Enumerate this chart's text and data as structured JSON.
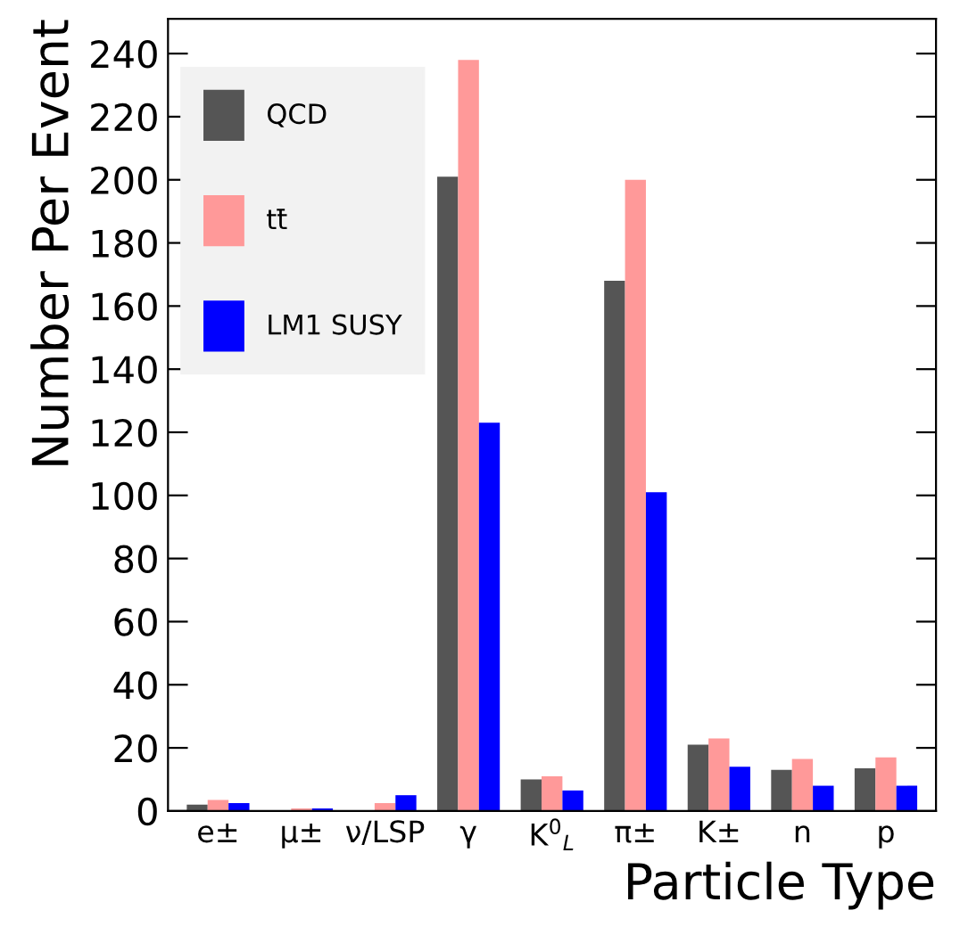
{
  "chart_data": {
    "type": "bar",
    "xlabel": "Particle Type",
    "ylabel": "Number Per Event",
    "categories": [
      "e±",
      "μ±",
      "ν/LSP",
      "γ",
      "K$^{0}$$_{L}$",
      "π±",
      "K±",
      "n",
      "p"
    ],
    "series": [
      {
        "name": "QCD",
        "color": "#555555",
        "values": [
          2,
          0,
          0,
          201,
          10,
          168,
          21,
          13,
          13.5
        ]
      },
      {
        "name": "tt̄",
        "color": "#ff9999",
        "values": [
          3.5,
          0.8,
          2.5,
          238,
          11,
          200,
          23,
          16.5,
          17
        ]
      },
      {
        "name": "LM1 SUSY",
        "color": "#0000ff",
        "values": [
          2.5,
          0.8,
          5,
          123,
          6.5,
          101,
          14,
          8,
          8
        ]
      }
    ],
    "ylim": [
      0,
      251
    ],
    "yticks": [
      0,
      20,
      40,
      60,
      80,
      100,
      120,
      140,
      160,
      180,
      200,
      220,
      240
    ],
    "legend": "top left",
    "grid": false
  }
}
